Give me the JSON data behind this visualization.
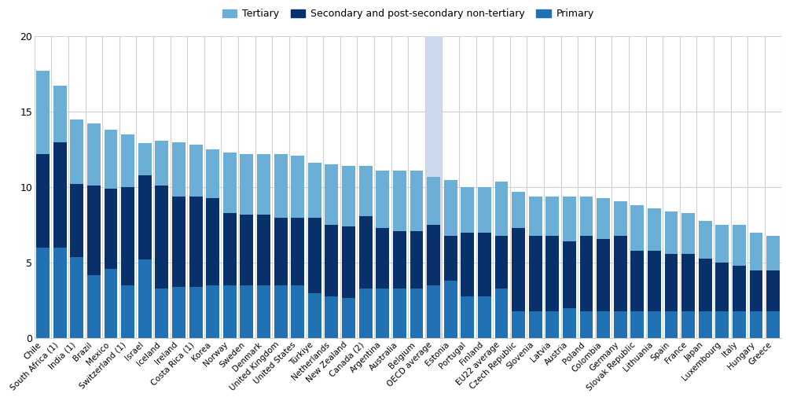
{
  "categories": [
    "Chile",
    "South Africa (1)",
    "India (1)",
    "Brazil",
    "Mexico",
    "Switzerland (1)",
    "Israel",
    "Iceland",
    "Ireland",
    "Costa Rica (1)",
    "Korea",
    "Norway",
    "Sweden",
    "Denmark",
    "United Kingdom",
    "United States",
    "Türkiye",
    "Netherlands",
    "New Zealand",
    "Canada (2)",
    "Argentina",
    "Australia",
    "Belgium",
    "OECD average",
    "Estonia",
    "Portugal",
    "Finland",
    "EU22 average",
    "Czech Republic",
    "Slovenia",
    "Latvia",
    "Austria",
    "Poland",
    "Colombia",
    "Germany",
    "Slovak Republic",
    "Lithuania",
    "Spain",
    "France",
    "Japan",
    "Luxembourg",
    "Italy",
    "Hungary",
    "Greece"
  ],
  "primary": [
    6.0,
    6.0,
    5.4,
    4.2,
    4.6,
    3.5,
    5.2,
    3.3,
    3.4,
    3.4,
    3.5,
    3.5,
    3.5,
    3.5,
    3.5,
    3.5,
    3.0,
    2.8,
    2.7,
    3.3,
    3.3,
    3.3,
    3.3,
    3.5,
    3.8,
    2.8,
    2.8,
    3.3,
    1.8,
    1.8,
    1.8,
    2.0,
    1.8,
    1.8,
    1.8,
    1.8,
    1.8,
    1.8,
    1.8,
    1.8,
    1.8,
    1.8,
    1.8,
    1.8
  ],
  "secondary": [
    6.2,
    7.0,
    4.8,
    5.9,
    5.3,
    6.5,
    5.6,
    6.8,
    6.0,
    6.0,
    5.8,
    4.8,
    4.7,
    4.7,
    4.5,
    4.5,
    5.0,
    4.7,
    4.7,
    4.8,
    4.0,
    3.8,
    3.8,
    4.0,
    3.0,
    4.2,
    4.2,
    3.5,
    5.5,
    5.0,
    5.0,
    4.4,
    5.0,
    4.8,
    5.0,
    4.0,
    4.0,
    3.8,
    3.8,
    3.5,
    3.2,
    3.0,
    2.7,
    2.7
  ],
  "tertiary": [
    5.5,
    3.7,
    4.3,
    4.1,
    3.9,
    3.5,
    2.1,
    3.0,
    3.6,
    3.4,
    3.2,
    4.0,
    4.0,
    4.0,
    4.2,
    4.1,
    3.6,
    4.0,
    4.0,
    3.3,
    3.8,
    4.0,
    4.0,
    3.2,
    3.7,
    3.0,
    3.0,
    3.6,
    2.4,
    2.6,
    2.6,
    3.0,
    2.6,
    2.7,
    2.3,
    3.0,
    2.8,
    2.8,
    2.7,
    2.5,
    2.5,
    2.7,
    2.5,
    2.3
  ],
  "oecd_average_index": 23,
  "color_tertiary": "#6baed6",
  "color_secondary": "#08306b",
  "color_primary": "#2171b5",
  "color_oecd_bg": "#cdd9ec",
  "ylim": [
    0,
    20
  ],
  "yticks": [
    0,
    5,
    10,
    15,
    20
  ],
  "bar_width": 0.78,
  "bg_color": "white",
  "grid_color": "#d0d0d0",
  "legend_fontsize": 9.0,
  "tick_fontsize": 7.5,
  "ytick_fontsize": 9.0
}
